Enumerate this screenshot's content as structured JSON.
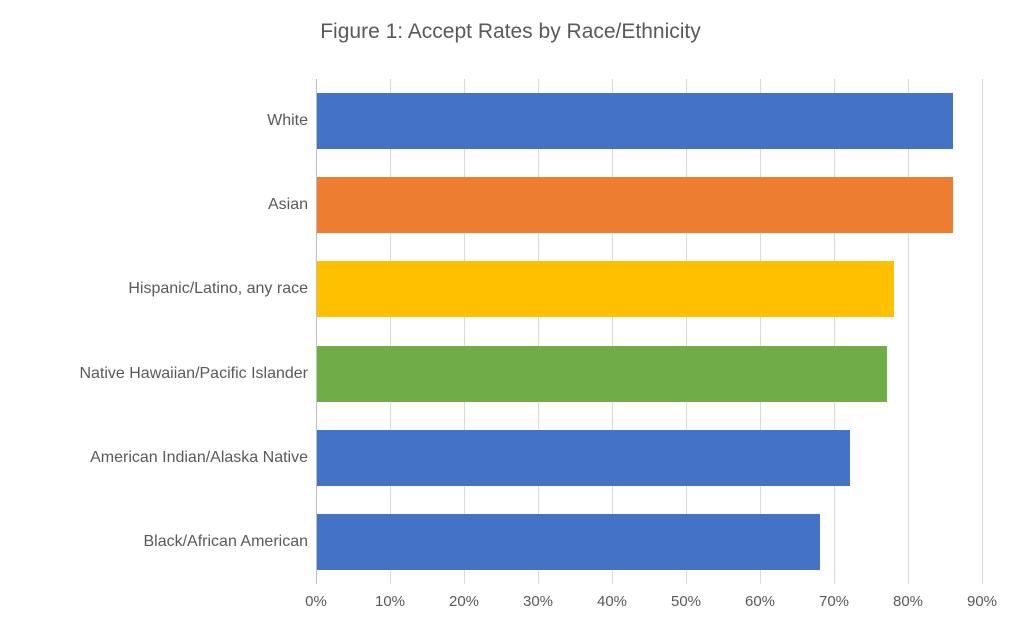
{
  "chart_data": {
    "type": "bar",
    "orientation": "horizontal",
    "title": "Figure 1: Accept Rates by Race/Ethnicity",
    "categories": [
      "White",
      "Asian",
      "Hispanic/Latino, any race",
      "Native Hawaiian/Pacific Islander",
      "American Indian/Alaska Native",
      "Black/African American"
    ],
    "values": [
      86,
      86,
      78,
      77,
      72,
      68
    ],
    "unit": "%",
    "bar_colors": [
      "#4472C4",
      "#ED7D31",
      "#FFC000",
      "#70AD47",
      "#4472C4",
      "#4472C4"
    ],
    "xlabel": "",
    "ylabel": "",
    "xlim": [
      0,
      90
    ],
    "x_tick_values": [
      0,
      10,
      20,
      30,
      40,
      50,
      60,
      70,
      80,
      90
    ],
    "x_tick_labels": [
      "0%",
      "10%",
      "20%",
      "30%",
      "40%",
      "50%",
      "60%",
      "70%",
      "80%",
      "90%"
    ],
    "grid": true,
    "legend": false,
    "colors": {
      "text": "#595959",
      "gridline": "#D9D9D9",
      "axis_line": "#BFBFBF",
      "background": "#FFFFFF"
    }
  }
}
